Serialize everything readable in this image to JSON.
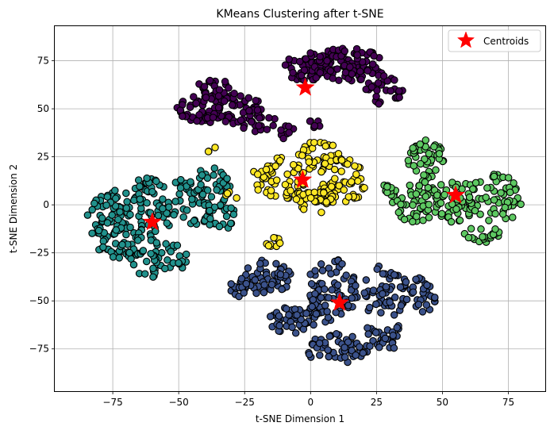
{
  "chart_data": {
    "type": "scatter",
    "title": "KMeans Clustering after t-SNE",
    "xlabel": "t-SNE Dimension 1",
    "ylabel": "t-SNE Dimension 2",
    "xlim": [
      -97,
      89
    ],
    "ylim": [
      -97,
      93
    ],
    "xticks": [
      -75,
      -50,
      -25,
      0,
      25,
      50,
      75
    ],
    "yticks": [
      -75,
      -50,
      -25,
      0,
      25,
      50,
      75
    ],
    "grid": true,
    "legend": {
      "position": "top-right",
      "entries": [
        "Centroids"
      ]
    },
    "colors": {
      "cluster_0": "#440154",
      "cluster_1": "#3b528b",
      "cluster_2": "#21918c",
      "cluster_3": "#5ec962",
      "cluster_4": "#fde725",
      "centroid": "#ff0000",
      "edge": "#000000",
      "grid": "#b0b0b0"
    },
    "clusters": [
      {
        "color_key": "cluster_0",
        "blobs": [
          {
            "cx": -34,
            "cy": 50,
            "rx": 17,
            "ry": 8,
            "n": 90
          },
          {
            "cx": -36,
            "cy": 60,
            "rx": 8,
            "ry": 5,
            "n": 25
          },
          {
            "cx": -20,
            "cy": 44,
            "rx": 8,
            "ry": 6,
            "n": 25
          },
          {
            "cx": -1,
            "cy": 72,
            "rx": 9,
            "ry": 8,
            "n": 55
          },
          {
            "cx": 15,
            "cy": 73,
            "rx": 14,
            "ry": 9,
            "n": 90
          },
          {
            "cx": 28,
            "cy": 60,
            "rx": 7,
            "ry": 8,
            "n": 30
          },
          {
            "cx": -9,
            "cy": 38,
            "rx": 4,
            "ry": 4,
            "n": 8
          },
          {
            "cx": 1,
            "cy": 42,
            "rx": 3,
            "ry": 3,
            "n": 6
          }
        ]
      },
      {
        "color_key": "cluster_1",
        "blobs": [
          {
            "cx": -17,
            "cy": -38,
            "rx": 10,
            "ry": 10,
            "n": 55
          },
          {
            "cx": -27,
            "cy": -43,
            "rx": 4,
            "ry": 5,
            "n": 12
          },
          {
            "cx": -7,
            "cy": -60,
            "rx": 10,
            "ry": 7,
            "n": 45
          },
          {
            "cx": 8,
            "cy": -45,
            "rx": 10,
            "ry": 17,
            "n": 80
          },
          {
            "cx": 10,
            "cy": -75,
            "rx": 12,
            "ry": 8,
            "n": 55
          },
          {
            "cx": 28,
            "cy": -45,
            "rx": 9,
            "ry": 14,
            "n": 55
          },
          {
            "cx": 42,
            "cy": -47,
            "rx": 6,
            "ry": 9,
            "n": 30
          },
          {
            "cx": 28,
            "cy": -68,
            "rx": 8,
            "ry": 8,
            "n": 30
          }
        ]
      },
      {
        "color_key": "cluster_2",
        "blobs": [
          {
            "cx": -72,
            "cy": -10,
            "rx": 14,
            "ry": 18,
            "n": 130
          },
          {
            "cx": -58,
            "cy": -28,
            "rx": 12,
            "ry": 10,
            "n": 50
          },
          {
            "cx": -48,
            "cy": 0,
            "rx": 11,
            "ry": 14,
            "n": 60
          },
          {
            "cx": -38,
            "cy": 8,
            "rx": 8,
            "ry": 12,
            "n": 40
          },
          {
            "cx": -34,
            "cy": -6,
            "rx": 6,
            "ry": 7,
            "n": 18
          },
          {
            "cx": -62,
            "cy": 10,
            "rx": 6,
            "ry": 5,
            "n": 18
          }
        ]
      },
      {
        "color_key": "cluster_3",
        "blobs": [
          {
            "cx": 44,
            "cy": 24,
            "rx": 7,
            "ry": 10,
            "n": 50
          },
          {
            "cx": 40,
            "cy": 2,
            "rx": 9,
            "ry": 11,
            "n": 55
          },
          {
            "cx": 55,
            "cy": 2,
            "rx": 8,
            "ry": 12,
            "n": 45
          },
          {
            "cx": 70,
            "cy": 3,
            "rx": 10,
            "ry": 13,
            "n": 60
          },
          {
            "cx": 65,
            "cy": -15,
            "rx": 7,
            "ry": 5,
            "n": 20
          },
          {
            "cx": 30,
            "cy": 8,
            "rx": 3,
            "ry": 4,
            "n": 12
          }
        ]
      },
      {
        "color_key": "cluster_4",
        "blobs": [
          {
            "cx": -12,
            "cy": 14,
            "rx": 10,
            "ry": 12,
            "n": 60
          },
          {
            "cx": 3,
            "cy": 25,
            "rx": 9,
            "ry": 8,
            "n": 40
          },
          {
            "cx": 12,
            "cy": 12,
            "rx": 9,
            "ry": 12,
            "n": 55
          },
          {
            "cx": 2,
            "cy": 2,
            "rx": 8,
            "ry": 7,
            "n": 35
          },
          {
            "cx": -14,
            "cy": -19,
            "rx": 3,
            "ry": 3,
            "n": 10
          },
          {
            "cx": -30,
            "cy": 5,
            "rx": 3,
            "ry": 2,
            "n": 5
          },
          {
            "cx": -37,
            "cy": 28,
            "rx": 2,
            "ry": 2,
            "n": 3
          }
        ]
      }
    ],
    "centroids": [
      {
        "x": -2,
        "y": 61
      },
      {
        "x": -3,
        "y": 13
      },
      {
        "x": -60,
        "y": -9
      },
      {
        "x": 55,
        "y": 5
      },
      {
        "x": 11,
        "y": -51
      }
    ]
  }
}
